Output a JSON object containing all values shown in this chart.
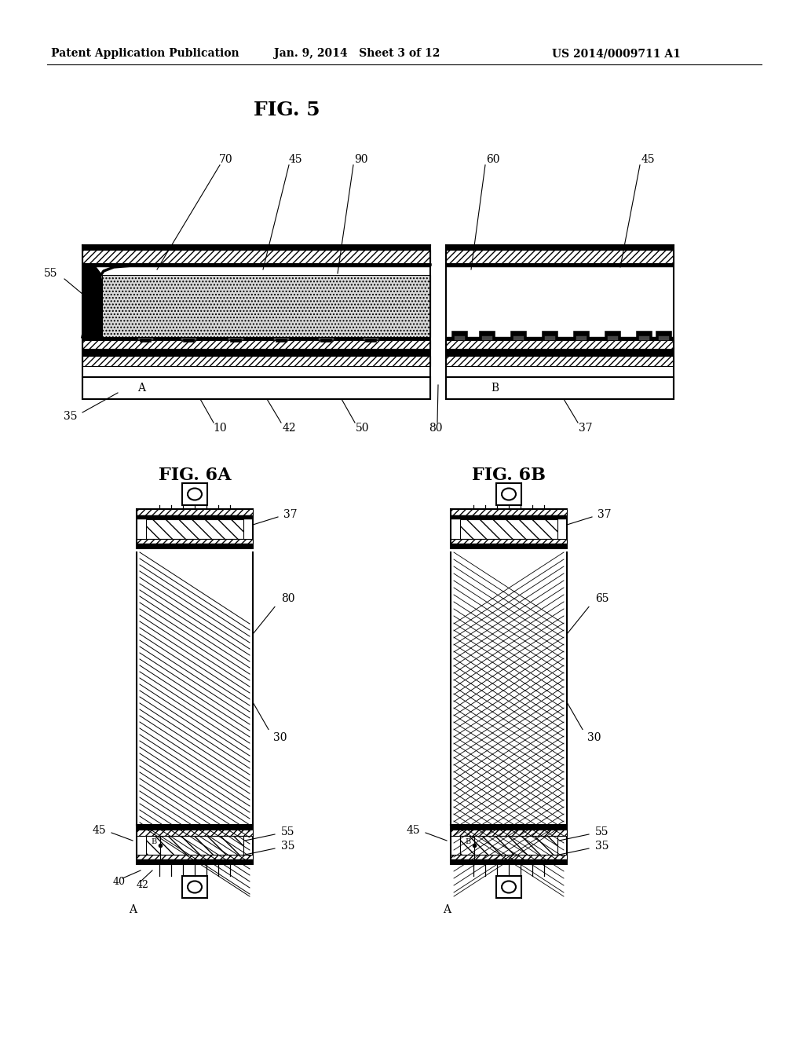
{
  "header_left": "Patent Application Publication",
  "header_mid": "Jan. 9, 2014   Sheet 3 of 12",
  "header_right": "US 2014/0009711 A1",
  "fig5_title": "FIG. 5",
  "fig6a_title": "FIG. 6A",
  "fig6b_title": "FIG. 6B",
  "bg_color": "#ffffff",
  "line_color": "#000000"
}
